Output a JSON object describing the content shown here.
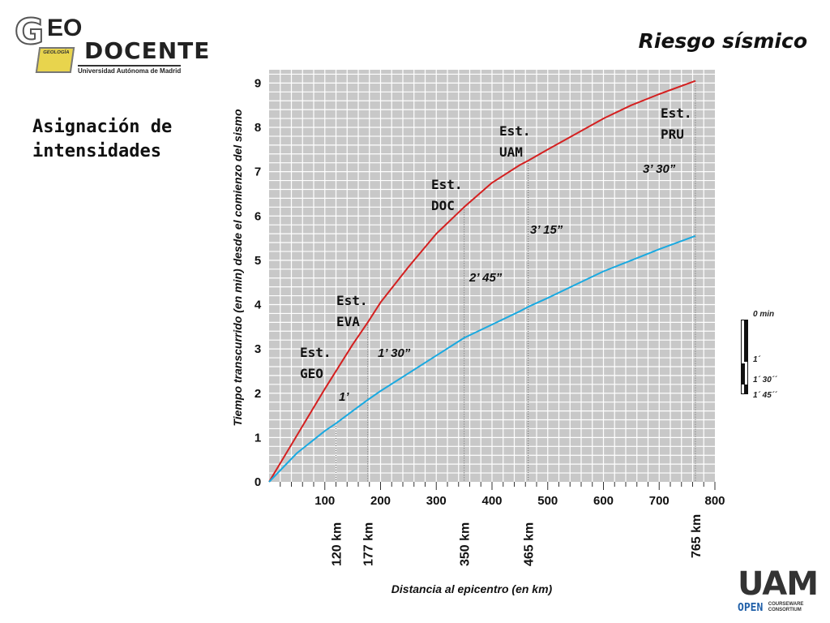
{
  "logo": {
    "g": "G",
    "eo": "EO",
    "docente": "DOCENTE",
    "university": "Universidad Autónoma de Madrid",
    "book_label": "GEOLOGÍA"
  },
  "header": {
    "title": "Riesgo sísmico"
  },
  "subtitle": {
    "line1": "Asignación de",
    "line2": "intensidades"
  },
  "footer_logo": {
    "uam": "UAM",
    "open": "OPEN",
    "courseware": "COURSEWARE",
    "consortium": "CONSORTIUM"
  },
  "scale_legend": {
    "labels": [
      "0 min",
      "1´",
      "1´ 30´´",
      "1´ 45´´"
    ]
  },
  "colors": {
    "plot_bg": "#c8c8c8",
    "grid": "#ffffff",
    "red_curve": "#d42020",
    "blue_curve": "#1aa9e0"
  },
  "chart_data": {
    "type": "line",
    "title": "",
    "xlabel": "Distancia al epicentro (en km)",
    "ylabel": "Tiempo transcurrido (en min) desde el comienzo del sismo",
    "xlim": [
      0,
      800
    ],
    "ylim": [
      0,
      9.3
    ],
    "grid": true,
    "x_ticks": [
      100,
      200,
      300,
      400,
      500,
      600,
      700,
      800
    ],
    "y_ticks": [
      0,
      1,
      2,
      3,
      4,
      5,
      6,
      7,
      8,
      9
    ],
    "series": [
      {
        "color": "#d42020",
        "x": [
          0,
          50,
          100,
          150,
          177,
          200,
          250,
          300,
          350,
          400,
          450,
          465,
          500,
          550,
          600,
          650,
          700,
          765
        ],
        "y": [
          0,
          1.05,
          2.1,
          3.1,
          3.6,
          4.05,
          4.85,
          5.6,
          6.2,
          6.75,
          7.15,
          7.25,
          7.5,
          7.85,
          8.2,
          8.5,
          8.75,
          9.05
        ]
      },
      {
        "color": "#1aa9e0",
        "x": [
          0,
          50,
          100,
          120,
          150,
          177,
          200,
          250,
          300,
          350,
          400,
          450,
          465,
          500,
          550,
          600,
          650,
          700,
          765
        ],
        "y": [
          0,
          0.65,
          1.15,
          1.32,
          1.6,
          1.85,
          2.05,
          2.45,
          2.85,
          3.25,
          3.55,
          3.85,
          3.95,
          4.15,
          4.45,
          4.75,
          5.0,
          5.25,
          5.55
        ]
      }
    ],
    "stations": [
      {
        "name": "Est.",
        "code": "GEO",
        "distance_label": "120 km",
        "time_label": "1’",
        "distance": 120
      },
      {
        "name": "Est.",
        "code": "EVA",
        "distance_label": "177 km",
        "time_label": "1’ 30”",
        "distance": 177
      },
      {
        "name": "Est.",
        "code": "DOC",
        "distance_label": "350 km",
        "time_label": "2’ 45”",
        "distance": 350
      },
      {
        "name": "Est.",
        "code": "UAM",
        "distance_label": "465 km",
        "time_label": "3’ 15”",
        "distance": 465
      },
      {
        "name": "Est.",
        "code": "PRU",
        "distance_label": "765 km",
        "time_label": "3’ 30”",
        "distance": 765
      }
    ]
  }
}
